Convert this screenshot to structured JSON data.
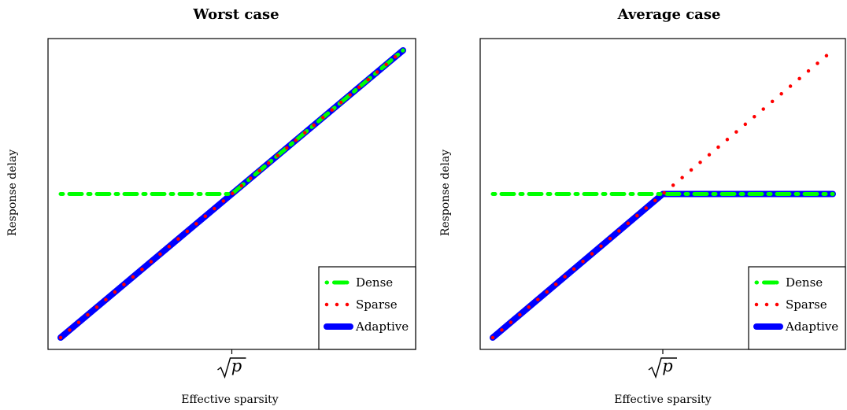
{
  "chart_data": [
    {
      "type": "line",
      "title": "Worst case",
      "xlabel": "Effective sparsity",
      "ylabel": "Response delay",
      "xticks": [
        "√p"
      ],
      "xlim": [
        0,
        1
      ],
      "ylim": [
        0,
        1
      ],
      "grid": false,
      "legend_position": "bottom-right",
      "series": [
        {
          "name": "Dense",
          "style": "dash-dot",
          "color": "#00ff00",
          "x": [
            0,
            0.5,
            1
          ],
          "y": [
            0.5,
            0.5,
            1
          ]
        },
        {
          "name": "Sparse",
          "style": "dotted",
          "color": "#ff0000",
          "x": [
            0,
            1
          ],
          "y": [
            0,
            1
          ]
        },
        {
          "name": "Adaptive",
          "style": "solid",
          "color": "#0000ff",
          "x": [
            0,
            1
          ],
          "y": [
            0,
            1
          ]
        }
      ]
    },
    {
      "type": "line",
      "title": "Average case",
      "xlabel": "Effective sparsity",
      "ylabel": "Response delay",
      "xticks": [
        "√p"
      ],
      "xlim": [
        0,
        1
      ],
      "ylim": [
        0,
        1
      ],
      "grid": false,
      "legend_position": "bottom-right",
      "series": [
        {
          "name": "Dense",
          "style": "dash-dot",
          "color": "#00ff00",
          "x": [
            0,
            1
          ],
          "y": [
            0.5,
            0.5
          ]
        },
        {
          "name": "Sparse",
          "style": "dotted",
          "color": "#ff0000",
          "x": [
            0,
            1
          ],
          "y": [
            0,
            1
          ]
        },
        {
          "name": "Adaptive",
          "style": "solid",
          "color": "#0000ff",
          "x": [
            0,
            0.5,
            1
          ],
          "y": [
            0,
            0.5,
            0.5
          ]
        }
      ]
    }
  ]
}
